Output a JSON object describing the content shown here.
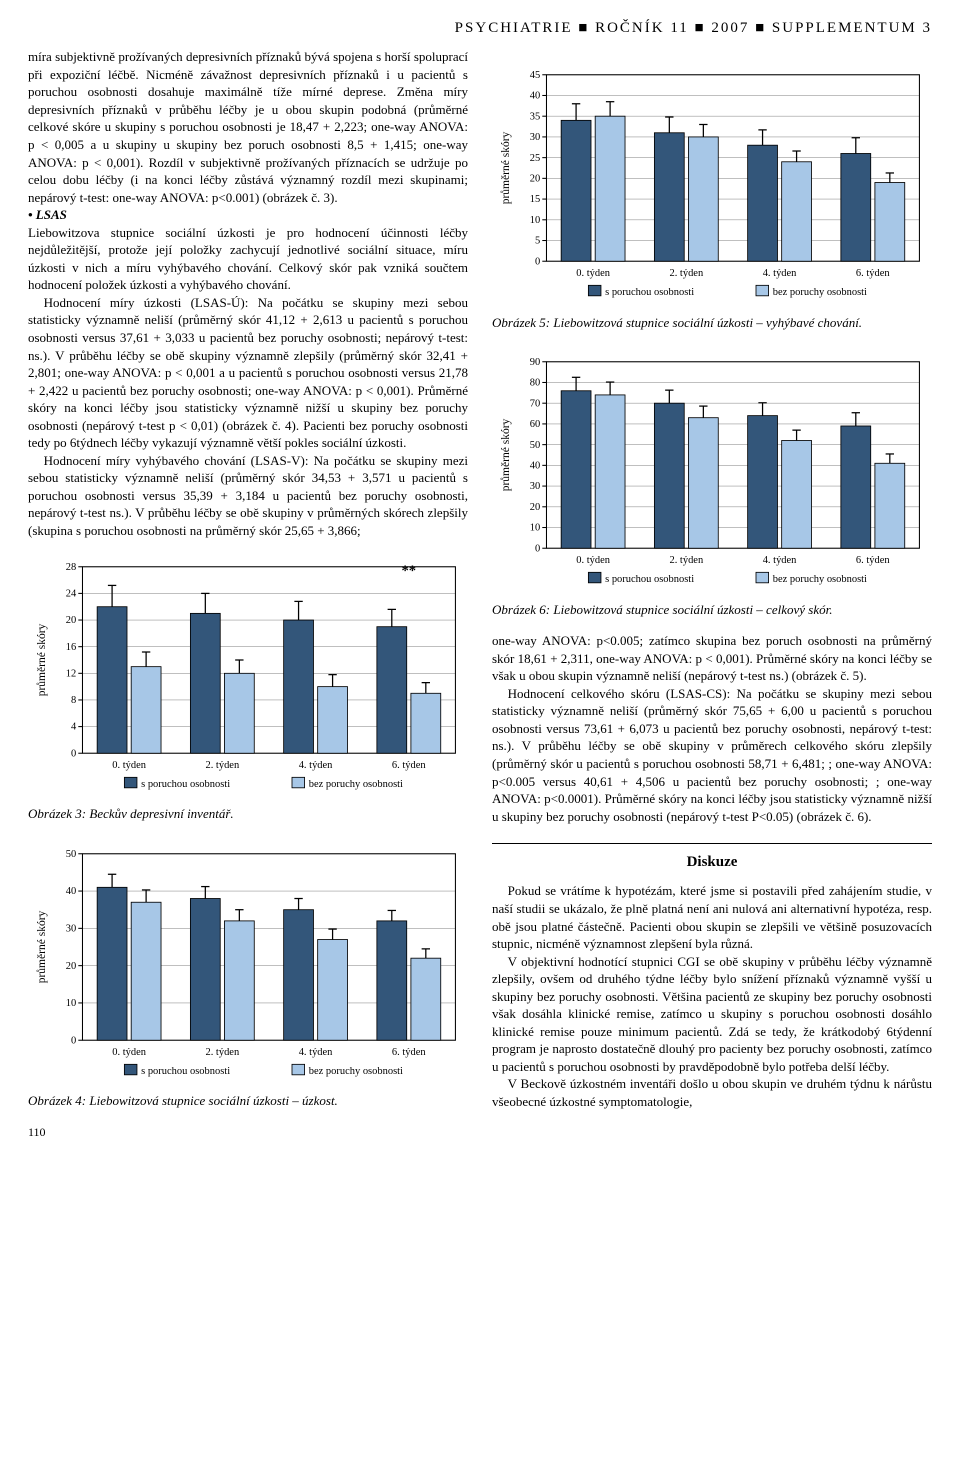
{
  "header": "PSYCHIATRIE ■ ROČNÍK 11 ■ 2007 ■ SUPPLEMENTUM 3",
  "left_col": {
    "para1": "míra subjektivně prožívaných depresivních příznaků bývá spojena s horší spoluprací při expoziční léčbě. Nicméně závažnost depresivních příznaků i u pacientů s poruchou osobnosti dosahuje maximálně tíže mírné deprese. Změna míry depresivních příznaků v průběhu léčby je u obou skupin podobná (průměrné celkové skóre u skupiny s poruchou osobnosti je 18,47 + 2,223; one-way ANOVA: p < 0,005 a u skupiny u skupiny bez poruch osobnosti 8,5 + 1,415; one-way ANOVA: p < 0,001). Rozdíl v subjektivně prožívaných příznacích se udržuje po celou dobu léčby (i na konci léčby zůstává významný rozdíl mezi skupinami; nepárový t-test: one-way ANOVA: p<0.001) (obrázek č. 3).",
    "lsas_label": "• LSAS",
    "para2": "Liebowitzova stupnice sociální úzkosti je pro hodnocení účinnosti léčby nejdůležitější, protože její položky zachycují jednotlivé sociální situace, míru úzkosti v nich a míru vyhýbavého chování. Celkový skór pak vzniká součtem hodnocení položek úzkosti a vyhýbavého chování.",
    "para3": "Hodnocení míry úzkosti (LSAS-Ú): Na počátku se skupiny mezi sebou statisticky významně neliší (průměrný skór 41,12 + 2,613 u pacientů s poruchou osobnosti versus 37,61 + 3,033 u pacientů bez poruchy osobnosti; nepárový t-test: ns.). V průběhu léčby se obě skupiny významně zlepšily (průměrný skór 32,41 + 2,801; one-way ANOVA: p < 0,001 a u pacientů s poruchou osobnosti versus 21,78 + 2,422 u pacientů bez poruchy osobnosti; one-way ANOVA: p < 0,001). Průměrné skóry na konci léčby jsou statisticky významně nižší u skupiny bez poruchy osobnosti (nepárový t-test p < 0,01) (obrázek č. 4). Pacienti bez poruchy osobnosti tedy po 6týdnech léčby vykazují významně větší pokles sociální úzkosti.",
    "para4": "Hodnocení míry vyhýbavého chování (LSAS-V): Na počátku se skupiny mezi sebou statisticky významně neliší (průměrný skór 34,53 + 3,571 u pacientů s poruchou osobnosti versus 35,39 + 3,184 u pacientů bez poruchy osobnosti, nepárový t-test ns.). V průběhu léčby se obě skupiny v průměrných skórech zlepšily (skupina s poruchou osobnosti na průměrný skór 25,65 + 3,866;",
    "chart3_caption": "Obrázek 3: Beckův depresivní inventář.",
    "chart4_caption": "Obrázek 4: Liebowitzová stupnice sociální úzkosti – úzkost.",
    "page_number": "110"
  },
  "right_col": {
    "chart5_caption": "Obrázek 5: Liebowitzová stupnice sociální úzkosti – vyhýbavé chování.",
    "chart6_caption": "Obrázek 6: Liebowitzová stupnice sociální úzkosti – celkový skór.",
    "para5": "one-way ANOVA: p<0.005; zatímco skupina bez poruch osobnosti na průměrný skór 18,61 + 2,311, one-way ANOVA: p < 0,001). Průměrné skóry na konci léčby se však u obou skupin významně neliší (nepárový t-test ns.) (obrázek č. 5).",
    "para6": "Hodnocení celkového skóru (LSAS-CS): Na počátku se skupiny mezi sebou statisticky významně neliší (průměrný skór 75,65 + 6,00 u pacientů s poruchou osobnosti versus 73,61 + 6,073 u pacientů bez poruchy osobnosti, nepárový t-test: ns.). V průběhu léčby se obě skupiny v průměrech celkového skóru zlepšily (průměrný skór u pacientů s poruchou osobnosti 58,71 + 6,481; ; one-way ANOVA: p<0.005 versus 40,61 + 4,506 u pacientů bez poruchy osobnosti; ; one-way ANOVA: p<0.0001). Průměrné skóry na konci léčby jsou statisticky významně nižší u skupiny bez poruchy osobnosti (nepárový t-test P<0.05) (obrázek č. 6).",
    "diskuze_title": "Diskuze",
    "diskuze1": "Pokud se vrátíme k hypotézám, které jsme si postavili před zahájením studie, v naší studii se ukázalo, že plně platná není ani nulová ani alternativní hypotéza, resp. obě jsou platné částečně. Pacienti obou skupin se zlepšili ve většině posuzovacích stupnic, nicméně významnost zlepšení byla různá.",
    "diskuze2": "V objektivní hodnotící stupnici CGI se obě skupiny v průběhu léčby významně zlepšily, ovšem od druhého týdne léčby bylo snížení příznaků významně vyšší u skupiny bez poruchy osobnosti. Většina pacientů ze skupiny bez poruchy osobnosti však dosáhla klinické remise, zatímco u skupiny s poruchou osobnosti dosáhlo klinické remise pouze minimum pacientů. Zdá se tedy, že krátkodobý 6týdenní program je naprosto dostatečně dlouhý pro pacienty bez poruchy osobnosti, zatímco u pacientů s poruchou osobnosti by pravděpodobně bylo potřeba delší léčby.",
    "diskuze3": "V Beckově úzkostném inventáři došlo u obou skupin ve druhém týdnu k nárůstu všeobecné úzkostné symptomatologie,"
  },
  "charts": {
    "common": {
      "ylabel": "průměrné skóry",
      "categories": [
        "0. týden",
        "2. týden",
        "4. týden",
        "6. týden"
      ],
      "legend_a": "s poruchou osobnosti",
      "legend_b": "bez poruchy osobnosti",
      "color_a": "#33567a",
      "color_b": "#a7c7e7",
      "bg": "#ffffff",
      "grid": "#b0b0b0"
    },
    "chart3": {
      "ymax": 28,
      "ystep": 4,
      "a": [
        22,
        21,
        20,
        19
      ],
      "a_err": [
        3.2,
        3.0,
        2.8,
        2.6
      ],
      "b": [
        13,
        12,
        10,
        9
      ],
      "b_err": [
        2.2,
        2.0,
        1.8,
        1.6
      ],
      "sig_marks": [
        {
          "x": 3,
          "label": "**"
        }
      ]
    },
    "chart4": {
      "ymax": 50,
      "ystep": 10,
      "a": [
        41,
        38,
        35,
        32
      ],
      "a_err": [
        3.5,
        3.2,
        3.0,
        2.8
      ],
      "b": [
        37,
        32,
        27,
        22
      ],
      "b_err": [
        3.3,
        3.0,
        2.8,
        2.5
      ],
      "sig_marks": []
    },
    "chart5": {
      "ymax": 45,
      "ystep": 5,
      "a": [
        34,
        31,
        28,
        26
      ],
      "a_err": [
        4.0,
        3.8,
        3.7,
        3.8
      ],
      "b": [
        35,
        30,
        24,
        19
      ],
      "b_err": [
        3.5,
        3.0,
        2.6,
        2.3
      ],
      "sig_marks": []
    },
    "chart6": {
      "ymax": 90,
      "ystep": 10,
      "a": [
        76,
        70,
        64,
        59
      ],
      "a_err": [
        6.5,
        6.3,
        6.2,
        6.4
      ],
      "b": [
        74,
        63,
        52,
        41
      ],
      "b_err": [
        6.2,
        5.6,
        5.0,
        4.5
      ],
      "sig_marks": []
    }
  }
}
